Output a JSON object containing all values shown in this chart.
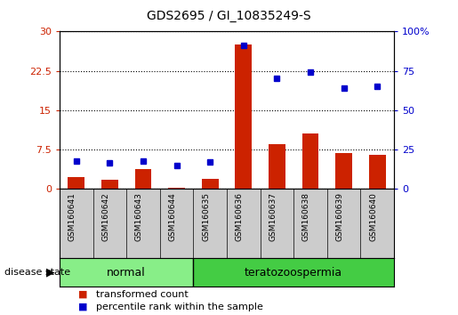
{
  "title": "GDS2695 / GI_10835249-S",
  "samples": [
    "GSM160641",
    "GSM160642",
    "GSM160643",
    "GSM160644",
    "GSM160635",
    "GSM160636",
    "GSM160637",
    "GSM160638",
    "GSM160639",
    "GSM160640"
  ],
  "transformed_count": [
    2.2,
    1.7,
    3.8,
    0.2,
    2.0,
    27.5,
    8.5,
    10.5,
    6.8,
    6.5
  ],
  "percentile_rank": [
    17.5,
    16.5,
    18.0,
    14.8,
    17.0,
    91.0,
    70.0,
    74.0,
    64.0,
    65.0
  ],
  "bar_color": "#cc2200",
  "dot_color": "#0000cc",
  "left_yticks": [
    0,
    7.5,
    15,
    22.5,
    30
  ],
  "right_yticks": [
    0,
    25,
    50,
    75,
    100
  ],
  "ylim_left": [
    0,
    30
  ],
  "ylim_right": [
    0,
    100
  ],
  "groups": [
    {
      "label": "normal",
      "start": 0,
      "end": 4,
      "color": "#88ee88"
    },
    {
      "label": "teratozoospermia",
      "start": 4,
      "end": 10,
      "color": "#44cc44"
    }
  ],
  "legend_items": [
    {
      "label": "transformed count",
      "color": "#cc2200"
    },
    {
      "label": "percentile rank within the sample",
      "color": "#0000cc"
    }
  ],
  "disease_state_label": "disease state",
  "grid_color": "black",
  "plot_bg": "white",
  "gray_bg": "#cccccc"
}
